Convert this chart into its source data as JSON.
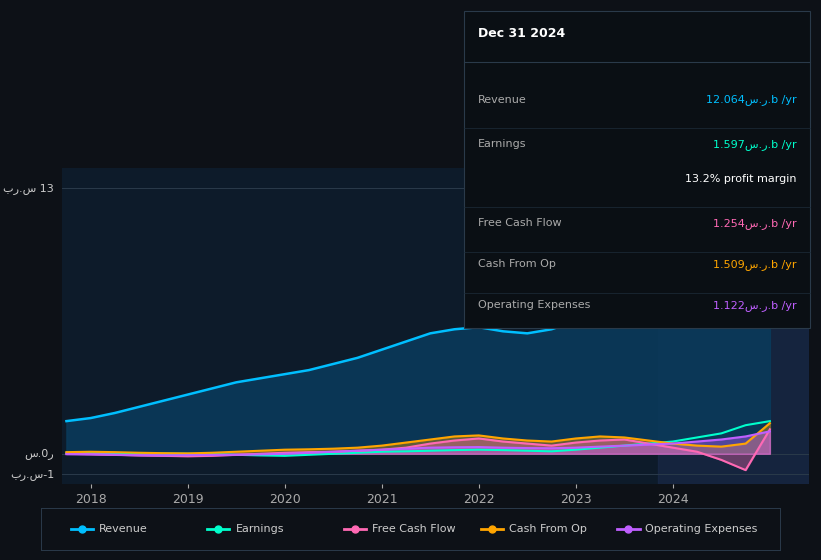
{
  "bg_color": "#0d1117",
  "plot_bg_color": "#0d1b2a",
  "title": "Dec 31 2024",
  "info_box_rows": [
    {
      "label": "Revenue",
      "value": "12.064س.ر.b /yr",
      "color": "#00bfff"
    },
    {
      "label": "Earnings",
      "value": "1.597س.ر.b /yr",
      "color": "#00ffcc"
    },
    {
      "label": "",
      "value": "13.2% profit margin",
      "color": "#ffffff"
    },
    {
      "label": "Free Cash Flow",
      "value": "1.254س.ر.b /yr",
      "color": "#ff69b4"
    },
    {
      "label": "Cash From Op",
      "value": "1.509س.ر.b /yr",
      "color": "#ffa500"
    },
    {
      "label": "Operating Expenses",
      "value": "1.122س.ر.b /yr",
      "color": "#bf5fff"
    }
  ],
  "ylim": [
    -1.5,
    14.0
  ],
  "xlim_start": 2017.7,
  "xlim_end": 2025.4,
  "xticks": [
    2018,
    2019,
    2020,
    2021,
    2022,
    2023,
    2024
  ],
  "revenue_color": "#00bfff",
  "earnings_color": "#00ffcc",
  "fcf_color": "#ff69b4",
  "cashfromop_color": "#ffa500",
  "opex_color": "#bf5fff",
  "legend": [
    {
      "label": "Revenue",
      "color": "#00bfff"
    },
    {
      "label": "Earnings",
      "color": "#00ffcc"
    },
    {
      "label": "Free Cash Flow",
      "color": "#ff69b4"
    },
    {
      "label": "Cash From Op",
      "color": "#ffa500"
    },
    {
      "label": "Operating Expenses",
      "color": "#bf5fff"
    }
  ],
  "revenue_x": [
    2017.75,
    2018.0,
    2018.25,
    2018.5,
    2018.75,
    2019.0,
    2019.25,
    2019.5,
    2019.75,
    2020.0,
    2020.25,
    2020.5,
    2020.75,
    2021.0,
    2021.25,
    2021.5,
    2021.75,
    2022.0,
    2022.25,
    2022.5,
    2022.75,
    2023.0,
    2023.25,
    2023.5,
    2023.75,
    2024.0,
    2024.25,
    2024.5,
    2024.75,
    2025.0
  ],
  "revenue_y": [
    1.6,
    1.75,
    2.0,
    2.3,
    2.6,
    2.9,
    3.2,
    3.5,
    3.7,
    3.9,
    4.1,
    4.4,
    4.7,
    5.1,
    5.5,
    5.9,
    6.1,
    6.2,
    6.0,
    5.9,
    6.1,
    6.5,
    7.1,
    7.8,
    8.5,
    9.3,
    10.2,
    11.0,
    11.8,
    12.5
  ],
  "earnings_x": [
    2017.75,
    2018.0,
    2018.25,
    2018.5,
    2018.75,
    2019.0,
    2019.25,
    2019.5,
    2019.75,
    2020.0,
    2020.25,
    2020.5,
    2020.75,
    2021.0,
    2021.25,
    2021.5,
    2021.75,
    2022.0,
    2022.25,
    2022.5,
    2022.75,
    2023.0,
    2023.25,
    2023.5,
    2023.75,
    2024.0,
    2024.25,
    2024.5,
    2024.75,
    2025.0
  ],
  "earnings_y": [
    0.05,
    0.04,
    0.03,
    0.02,
    0.01,
    0.0,
    -0.02,
    -0.05,
    -0.08,
    -0.1,
    -0.05,
    0.0,
    0.05,
    0.1,
    0.12,
    0.15,
    0.18,
    0.2,
    0.18,
    0.15,
    0.12,
    0.2,
    0.3,
    0.4,
    0.5,
    0.6,
    0.8,
    1.0,
    1.4,
    1.6
  ],
  "fcf_x": [
    2017.75,
    2018.0,
    2018.25,
    2018.5,
    2018.75,
    2019.0,
    2019.25,
    2019.5,
    2019.75,
    2020.0,
    2020.25,
    2020.5,
    2020.75,
    2021.0,
    2021.25,
    2021.5,
    2021.75,
    2022.0,
    2022.25,
    2022.5,
    2022.75,
    2023.0,
    2023.25,
    2023.5,
    2023.75,
    2024.0,
    2024.25,
    2024.5,
    2024.75,
    2025.0
  ],
  "fcf_y": [
    0.0,
    -0.02,
    -0.05,
    -0.08,
    -0.1,
    -0.12,
    -0.1,
    -0.05,
    0.0,
    0.05,
    0.08,
    0.1,
    0.15,
    0.2,
    0.3,
    0.5,
    0.65,
    0.75,
    0.6,
    0.5,
    0.4,
    0.55,
    0.65,
    0.7,
    0.5,
    0.3,
    0.1,
    -0.3,
    -0.8,
    1.2
  ],
  "cashfromop_x": [
    2017.75,
    2018.0,
    2018.25,
    2018.5,
    2018.75,
    2019.0,
    2019.25,
    2019.5,
    2019.75,
    2020.0,
    2020.25,
    2020.5,
    2020.75,
    2021.0,
    2021.25,
    2021.5,
    2021.75,
    2022.0,
    2022.25,
    2022.5,
    2022.75,
    2023.0,
    2023.25,
    2023.5,
    2023.75,
    2024.0,
    2024.25,
    2024.5,
    2024.75,
    2025.0
  ],
  "cashfromop_y": [
    0.08,
    0.1,
    0.08,
    0.05,
    0.03,
    0.02,
    0.05,
    0.1,
    0.15,
    0.2,
    0.22,
    0.25,
    0.3,
    0.4,
    0.55,
    0.7,
    0.85,
    0.9,
    0.75,
    0.65,
    0.6,
    0.75,
    0.85,
    0.8,
    0.65,
    0.5,
    0.4,
    0.35,
    0.5,
    1.5
  ],
  "opex_x": [
    2017.75,
    2018.0,
    2018.25,
    2018.5,
    2018.75,
    2019.0,
    2019.25,
    2019.5,
    2019.75,
    2020.0,
    2020.25,
    2020.5,
    2020.75,
    2021.0,
    2021.25,
    2021.5,
    2021.75,
    2022.0,
    2022.25,
    2022.5,
    2022.75,
    2023.0,
    2023.25,
    2023.5,
    2023.75,
    2024.0,
    2024.25,
    2024.5,
    2024.75,
    2025.0
  ],
  "opex_y": [
    -0.02,
    -0.03,
    -0.05,
    -0.07,
    -0.08,
    -0.07,
    -0.06,
    -0.05,
    -0.03,
    0.0,
    0.05,
    0.1,
    0.15,
    0.2,
    0.25,
    0.3,
    0.32,
    0.33,
    0.3,
    0.28,
    0.27,
    0.3,
    0.35,
    0.4,
    0.45,
    0.5,
    0.6,
    0.7,
    0.85,
    1.1
  ],
  "highlight_start": 2023.85,
  "highlight_color": "#1a2a4a"
}
